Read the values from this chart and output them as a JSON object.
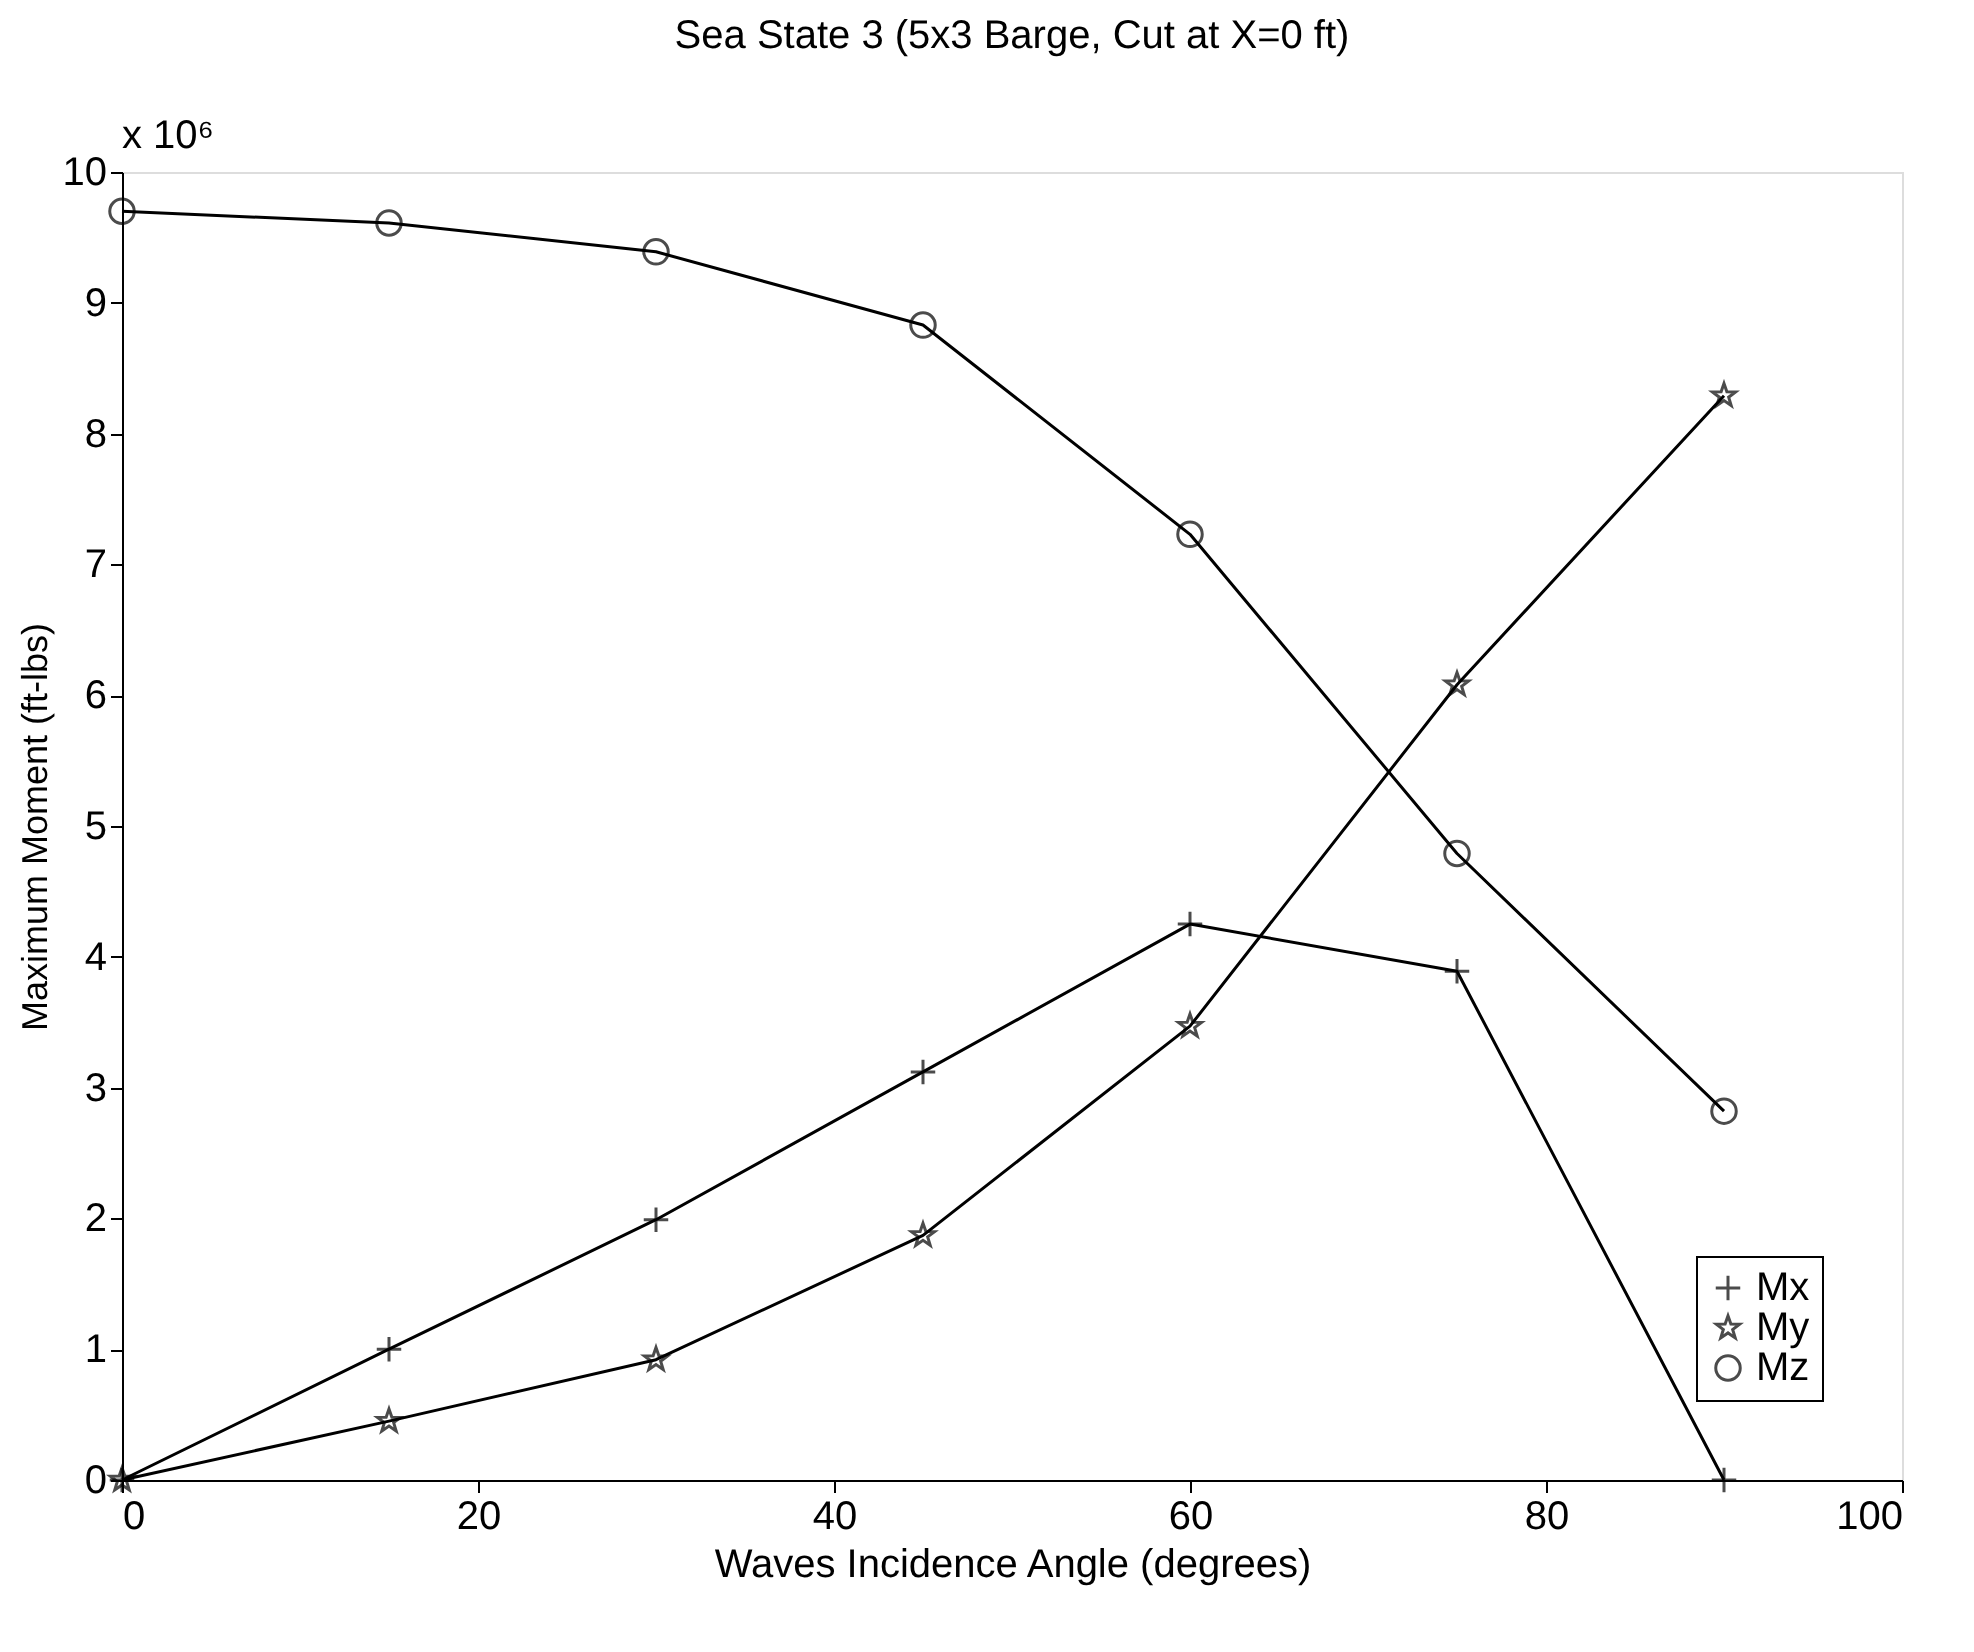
{
  "chart_data": {
    "type": "line",
    "title": "Sea State 3 (5x3 Barge, Cut at X=0 ft)",
    "xlabel": "Waves Incidence Angle (degrees)",
    "ylabel": "Maximum Moment (ft-lbs)",
    "annotations": [
      "x 10⁶"
    ],
    "x": [
      0,
      15,
      30,
      45,
      60,
      75,
      90
    ],
    "series": [
      {
        "name": "Mx",
        "color": "#000000",
        "marker": "cross",
        "values": [
          0,
          1.0,
          1.99,
          3.12,
          4.25,
          3.89,
          0
        ]
      },
      {
        "name": "My",
        "color": "#000000",
        "marker": "star",
        "values": [
          0,
          0.45,
          0.92,
          1.87,
          3.47,
          6.08,
          8.29
        ]
      },
      {
        "name": "Mz",
        "color": "#000000",
        "marker": "circle",
        "values": [
          9.7,
          9.61,
          9.39,
          8.83,
          7.23,
          4.79,
          2.82
        ]
      }
    ],
    "xlim": [
      0,
      100
    ],
    "xticks": [
      0,
      20,
      40,
      60,
      80,
      100
    ],
    "ylim": [
      0,
      10
    ],
    "yticks": [
      0,
      1,
      2,
      3,
      4,
      5,
      6,
      7,
      8,
      9,
      10
    ],
    "grid": false,
    "legend": "bottom right",
    "line_style": "solid"
  }
}
